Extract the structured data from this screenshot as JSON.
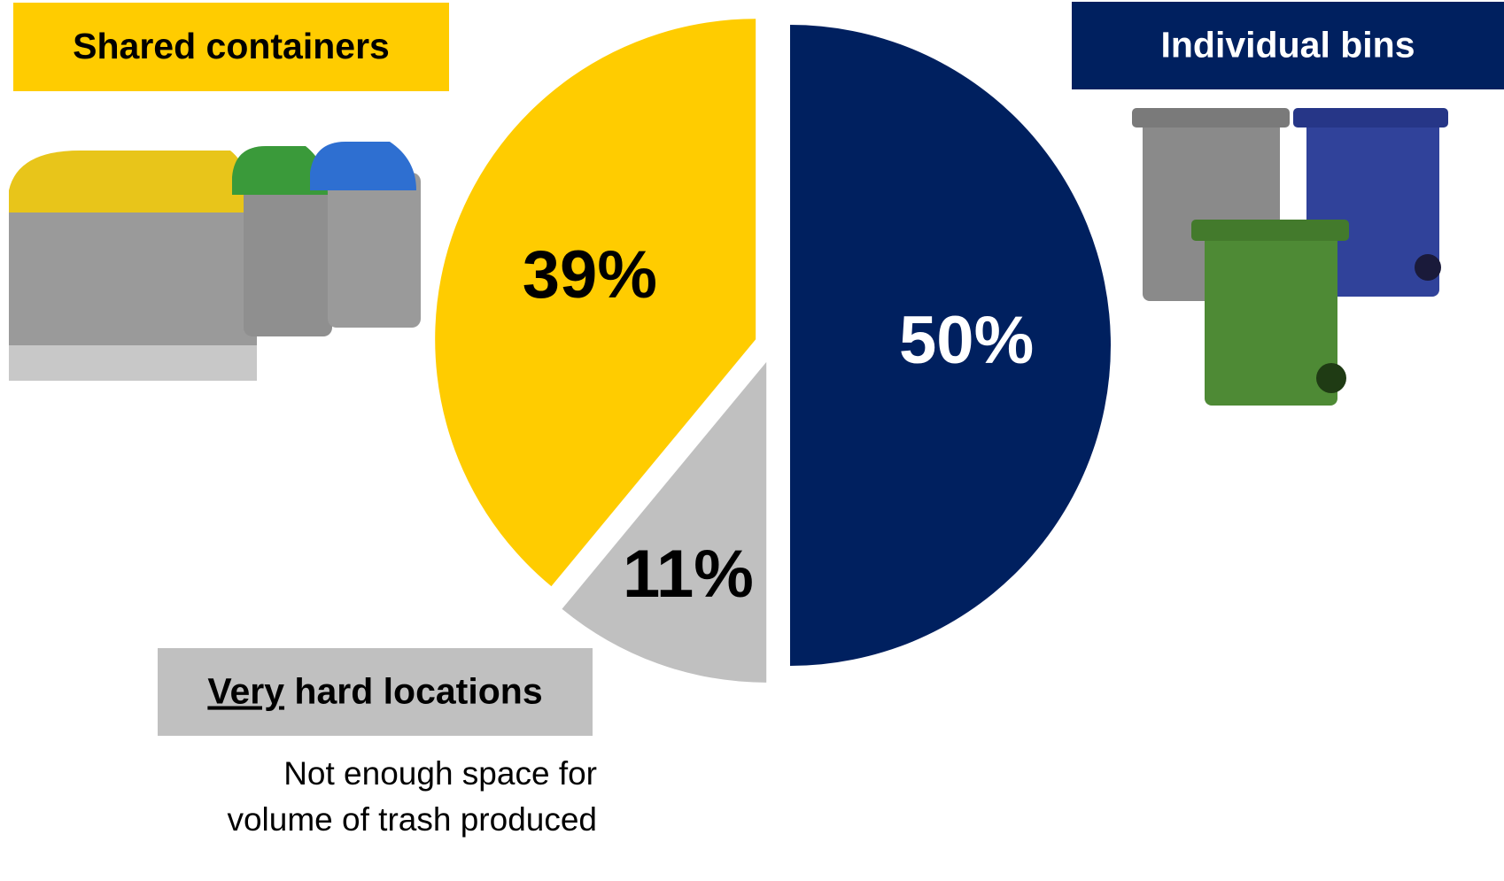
{
  "chart_data": {
    "type": "pie",
    "categories": [
      "Individual bins",
      "Very hard locations",
      "Shared containers"
    ],
    "values": [
      50,
      11,
      39
    ],
    "value_labels": [
      "50%",
      "11%",
      "39%"
    ],
    "colors": [
      "#00205f",
      "#c0c0c0",
      "#ffcc00"
    ],
    "annotation": "Not enough space for volume of trash produced"
  }
}
